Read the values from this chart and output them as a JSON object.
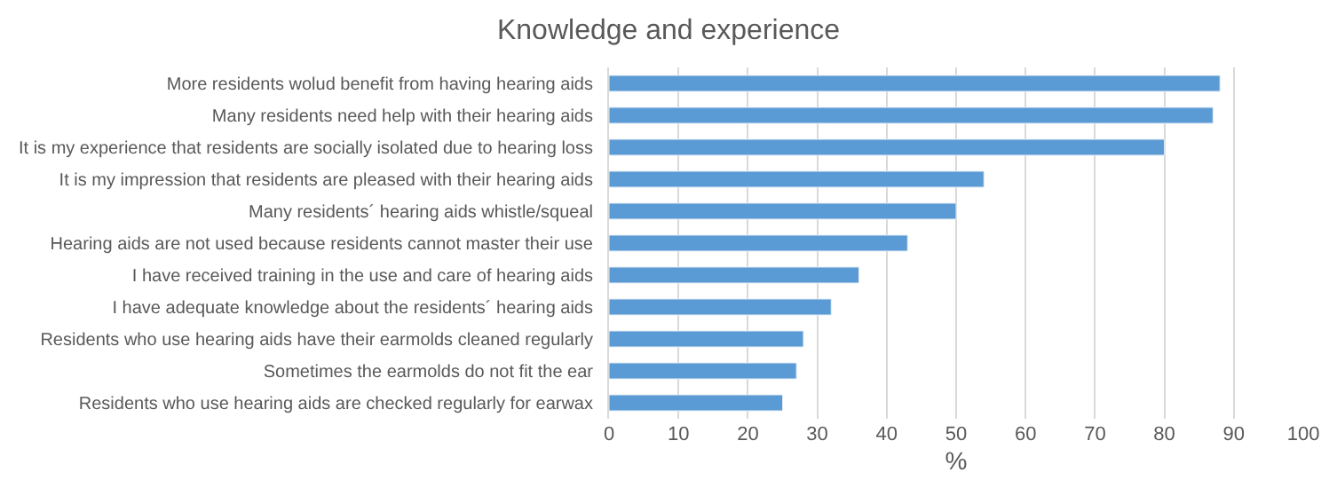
{
  "chart_data": {
    "type": "bar",
    "orientation": "horizontal",
    "title": "Knowledge and experience",
    "xlabel": "%",
    "categories": [
      "More residents wolud benefit from having hearing aids",
      "Many residents need help with their hearing aids",
      "It is my experience that residents are socially isolated due to hearing loss",
      "It is my impression that residents are pleased with their hearing aids",
      "Many residents´ hearing aids whistle/squeal",
      "Hearing aids are not used because residents cannot master their use",
      "I have received training in the use and care of hearing aids",
      "I have adequate knowledge about the residents´ hearing aids",
      "Residents who use hearing aids have their earmolds cleaned regularly",
      "Sometimes the earmolds do not fit the ear",
      "Residents who use hearing aids are checked regularly for earwax"
    ],
    "values": [
      88,
      87,
      80,
      54,
      50,
      43,
      36,
      32,
      28,
      27,
      25
    ],
    "color": "#5b9bd5",
    "xlim": [
      0,
      100
    ],
    "xticks": [
      0,
      10,
      20,
      30,
      40,
      50,
      60,
      70,
      80,
      90,
      100
    ],
    "grid": "x"
  }
}
